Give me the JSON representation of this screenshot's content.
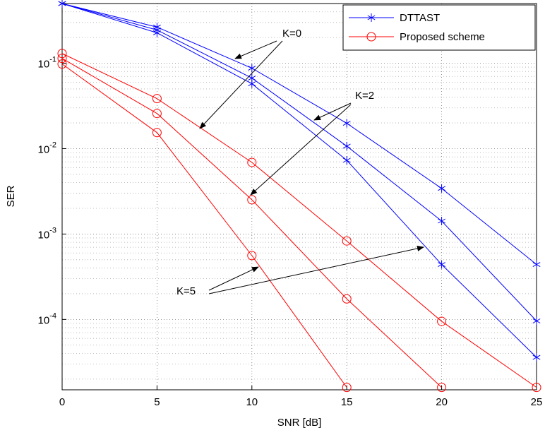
{
  "chart_data": {
    "type": "line",
    "xlabel": "SNR [dB]",
    "ylabel": "SER",
    "x": [
      0,
      5,
      10,
      15,
      20,
      25
    ],
    "series": [
      {
        "name": "DTTAST",
        "color": "#0000ff",
        "marker": "asterisk",
        "values": [
          0.5,
          0.265,
          0.0875,
          0.0198,
          0.00342,
          0.00044
        ]
      },
      {
        "name": "DTTAST",
        "color": "#0000ff",
        "marker": "asterisk",
        "values": [
          0.5,
          0.245,
          0.067,
          0.0107,
          0.00142,
          9.6e-05
        ]
      },
      {
        "name": "DTTAST",
        "color": "#0000ff",
        "marker": "asterisk",
        "values": [
          0.5,
          0.227,
          0.0575,
          0.0073,
          0.00044,
          3.6e-05
        ]
      },
      {
        "name": "Proposed scheme",
        "color": "#ff0000",
        "marker": "circle",
        "values": [
          0.13,
          0.0385,
          0.0069,
          0.00083,
          9.5e-05,
          1.6e-05
        ]
      },
      {
        "name": "Proposed scheme",
        "color": "#ff0000",
        "marker": "circle",
        "values": [
          0.114,
          0.0258,
          0.00252,
          0.000174,
          1.6e-05,
          null
        ]
      },
      {
        "name": "Proposed scheme",
        "color": "#ff0000",
        "marker": "circle",
        "values": [
          0.098,
          0.0154,
          0.00056,
          1.6e-05,
          null,
          null
        ]
      }
    ],
    "xlim": [
      0,
      25
    ],
    "xticks": [
      0,
      5,
      10,
      15,
      20,
      25
    ],
    "ylim": [
      1.5e-05,
      0.5
    ],
    "log_y": true,
    "yticks": [
      {
        "value": 0.1,
        "label": "10^-1"
      },
      {
        "value": 0.01,
        "label": "10^-2"
      },
      {
        "value": 0.001,
        "label": "10^-3"
      },
      {
        "value": 0.0001,
        "label": "10^-4"
      }
    ],
    "grid": true,
    "legend": "upper right",
    "annotations": [
      {
        "text": "K=0"
      },
      {
        "text": "K=2"
      },
      {
        "text": "K=5"
      }
    ]
  }
}
